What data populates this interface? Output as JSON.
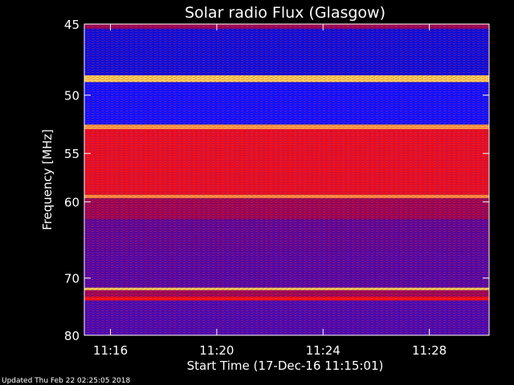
{
  "chart_data": {
    "type": "heatmap",
    "title": "Solar radio Flux (Glasgow)",
    "xlabel": "Start Time (17-Dec-16 11:15:01)",
    "ylabel": "Frequency [MHz]",
    "xlim": [
      "11:15:01",
      "11:30:15"
    ],
    "ylim": [
      45,
      80
    ],
    "x_ticks": [
      "11:16",
      "11:20",
      "11:24",
      "11:28"
    ],
    "y_ticks": [
      "45",
      "50",
      "55",
      "60",
      "70",
      "80"
    ],
    "colormap": [
      "#000030",
      "#1010ff",
      "#800060",
      "#ff1010",
      "#ffff60"
    ],
    "bands": [
      {
        "from": 45.0,
        "to": 45.3,
        "level": 0.55
      },
      {
        "from": 45.3,
        "to": 48.5,
        "level": 0.2
      },
      {
        "from": 48.5,
        "to": 49.0,
        "level": 0.95
      },
      {
        "from": 49.0,
        "to": 52.4,
        "level": 0.25
      },
      {
        "from": 52.4,
        "to": 52.8,
        "level": 0.9
      },
      {
        "from": 52.8,
        "to": 59.2,
        "level": 0.7
      },
      {
        "from": 59.2,
        "to": 59.6,
        "level": 0.88
      },
      {
        "from": 59.6,
        "to": 62.0,
        "level": 0.55
      },
      {
        "from": 62.0,
        "to": 66.0,
        "level": 0.42
      },
      {
        "from": 66.0,
        "to": 71.5,
        "level": 0.4
      },
      {
        "from": 71.5,
        "to": 71.9,
        "level": 0.96
      },
      {
        "from": 71.9,
        "to": 73.0,
        "level": 0.55
      },
      {
        "from": 73.0,
        "to": 73.6,
        "level": 0.75
      },
      {
        "from": 73.6,
        "to": 80.0,
        "level": 0.38
      }
    ]
  },
  "footer": {
    "updated_text": "Updated Thu Feb 22 02:25:05 2018"
  }
}
